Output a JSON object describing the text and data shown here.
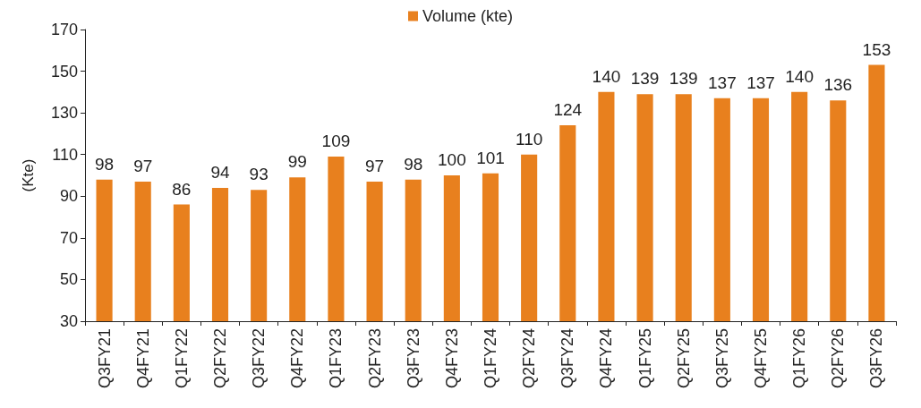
{
  "chart_data": {
    "type": "bar",
    "ylabel": "(Kte)",
    "categories": [
      "Q3FY21",
      "Q4FY21",
      "Q1FY22",
      "Q2FY22",
      "Q3FY22",
      "Q4FY22",
      "Q1FY23",
      "Q2FY23",
      "Q3FY23",
      "Q4FY23",
      "Q1FY24",
      "Q2FY24",
      "Q3FY24",
      "Q4FY24",
      "Q1FY25",
      "Q2FY25",
      "Q3FY25",
      "Q4FY25",
      "Q1FY26",
      "Q2FY26",
      "Q3FY26"
    ],
    "series": [
      {
        "name": "Volume (kte)",
        "color": "#e8801e",
        "values": [
          98,
          97,
          86,
          94,
          93,
          99,
          109,
          97,
          98,
          100,
          101,
          110,
          124,
          140,
          139,
          139,
          137,
          137,
          140,
          136,
          153
        ]
      }
    ],
    "ylim": [
      30,
      170
    ],
    "yticks": [
      30,
      50,
      70,
      90,
      110,
      130,
      150,
      170
    ],
    "grid": false,
    "legend": "top",
    "data_labels": true
  }
}
